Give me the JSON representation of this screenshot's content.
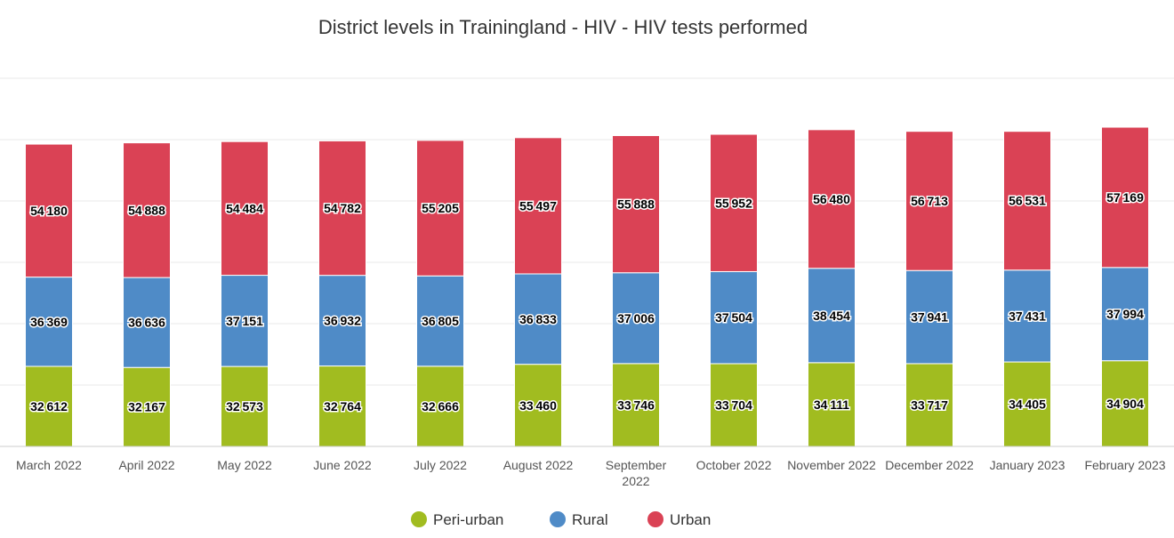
{
  "chart_data": {
    "type": "bar",
    "stacked": true,
    "title": "District levels in Trainingland - HIV - HIV tests performed",
    "xlabel": "",
    "ylabel": "",
    "ylim": [
      0,
      150000
    ],
    "grid": true,
    "legend_position": "bottom-center",
    "categories": [
      "March 2022",
      "April 2022",
      "May 2022",
      "June 2022",
      "July 2022",
      "August 2022",
      "September 2022",
      "October 2022",
      "November 2022",
      "December 2022",
      "January 2023",
      "February 2023"
    ],
    "series": [
      {
        "name": "Peri-urban",
        "color": "#a1bc20",
        "values": [
          32612,
          32167,
          32573,
          32764,
          32666,
          33460,
          33746,
          33704,
          34111,
          33717,
          34405,
          34904
        ]
      },
      {
        "name": "Rural",
        "color": "#4f8bc7",
        "values": [
          36369,
          36636,
          37151,
          36932,
          36805,
          36833,
          37006,
          37504,
          38454,
          37941,
          37431,
          37994
        ]
      },
      {
        "name": "Urban",
        "color": "#da4255",
        "values": [
          54180,
          54888,
          54484,
          54782,
          55205,
          55497,
          55888,
          55952,
          56480,
          56713,
          56531,
          57169
        ]
      }
    ]
  }
}
